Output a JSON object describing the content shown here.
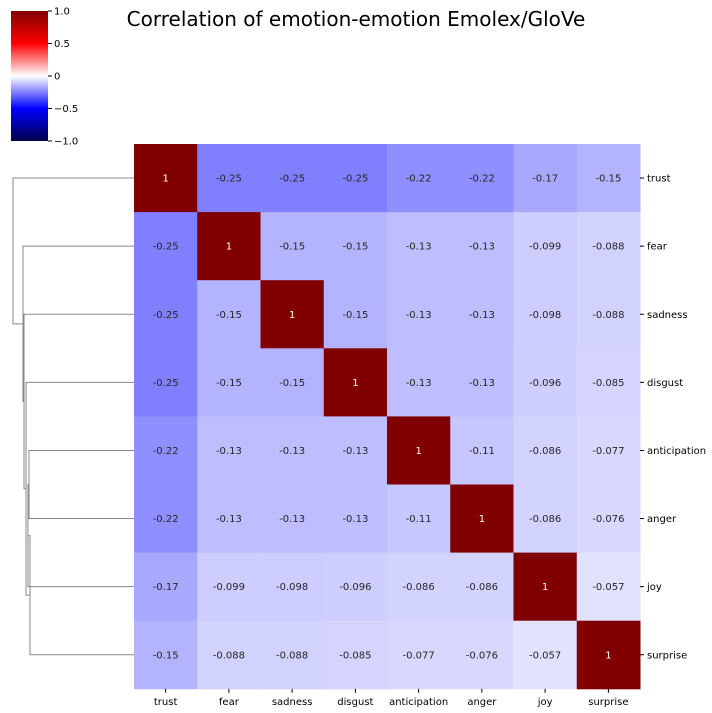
{
  "chart_data": {
    "type": "heatmap",
    "title": "Correlation of emotion-emotion Emolex/GloVe",
    "colormap": "seismic",
    "vmin": -1.0,
    "vmax": 1.0,
    "colorbar_ticks": [
      "1.0",
      "0.5",
      "0",
      "−0.5",
      "−1.0"
    ],
    "colorbar_tick_values": [
      1.0,
      0.5,
      0,
      -0.5,
      -1.0
    ],
    "colorbar_position": "top-left",
    "row_dendrogram": "left",
    "x_labels": [
      "trust",
      "fear",
      "sadness",
      "disgust",
      "anticipation",
      "anger",
      "joy",
      "surprise"
    ],
    "y_labels": [
      "trust",
      "fear",
      "sadness",
      "disgust",
      "anticipation",
      "anger",
      "joy",
      "surprise"
    ],
    "values": [
      [
        1,
        -0.25,
        -0.25,
        -0.25,
        -0.22,
        -0.22,
        -0.17,
        -0.15
      ],
      [
        -0.25,
        1,
        -0.15,
        -0.15,
        -0.13,
        -0.13,
        -0.099,
        -0.088
      ],
      [
        -0.25,
        -0.15,
        1,
        -0.15,
        -0.13,
        -0.13,
        -0.098,
        -0.088
      ],
      [
        -0.25,
        -0.15,
        -0.15,
        1,
        -0.13,
        -0.13,
        -0.096,
        -0.085
      ],
      [
        -0.22,
        -0.13,
        -0.13,
        -0.13,
        1,
        -0.11,
        -0.086,
        -0.077
      ],
      [
        -0.22,
        -0.13,
        -0.13,
        -0.13,
        -0.11,
        1,
        -0.086,
        -0.076
      ],
      [
        -0.17,
        -0.099,
        -0.098,
        -0.096,
        -0.086,
        -0.086,
        1,
        -0.057
      ],
      [
        -0.15,
        -0.088,
        -0.088,
        -0.085,
        -0.077,
        -0.076,
        -0.057,
        1
      ]
    ],
    "value_labels": [
      [
        "1",
        "-0.25",
        "-0.25",
        "-0.25",
        "-0.22",
        "-0.22",
        "-0.17",
        "-0.15"
      ],
      [
        "-0.25",
        "1",
        "-0.15",
        "-0.15",
        "-0.13",
        "-0.13",
        "-0.099",
        "-0.088"
      ],
      [
        "-0.25",
        "-0.15",
        "1",
        "-0.15",
        "-0.13",
        "-0.13",
        "-0.098",
        "-0.088"
      ],
      [
        "-0.25",
        "-0.15",
        "-0.15",
        "1",
        "-0.13",
        "-0.13",
        "-0.096",
        "-0.085"
      ],
      [
        "-0.22",
        "-0.13",
        "-0.13",
        "-0.13",
        "1",
        "-0.11",
        "-0.086",
        "-0.077"
      ],
      [
        "-0.22",
        "-0.13",
        "-0.13",
        "-0.13",
        "-0.11",
        "1",
        "-0.086",
        "-0.076"
      ],
      [
        "-0.17",
        "-0.099",
        "-0.098",
        "-0.096",
        "-0.086",
        "-0.086",
        "1",
        "-0.057"
      ],
      [
        "-0.15",
        "-0.088",
        "-0.088",
        "-0.085",
        "-0.077",
        "-0.076",
        "-0.057",
        "1"
      ]
    ]
  }
}
